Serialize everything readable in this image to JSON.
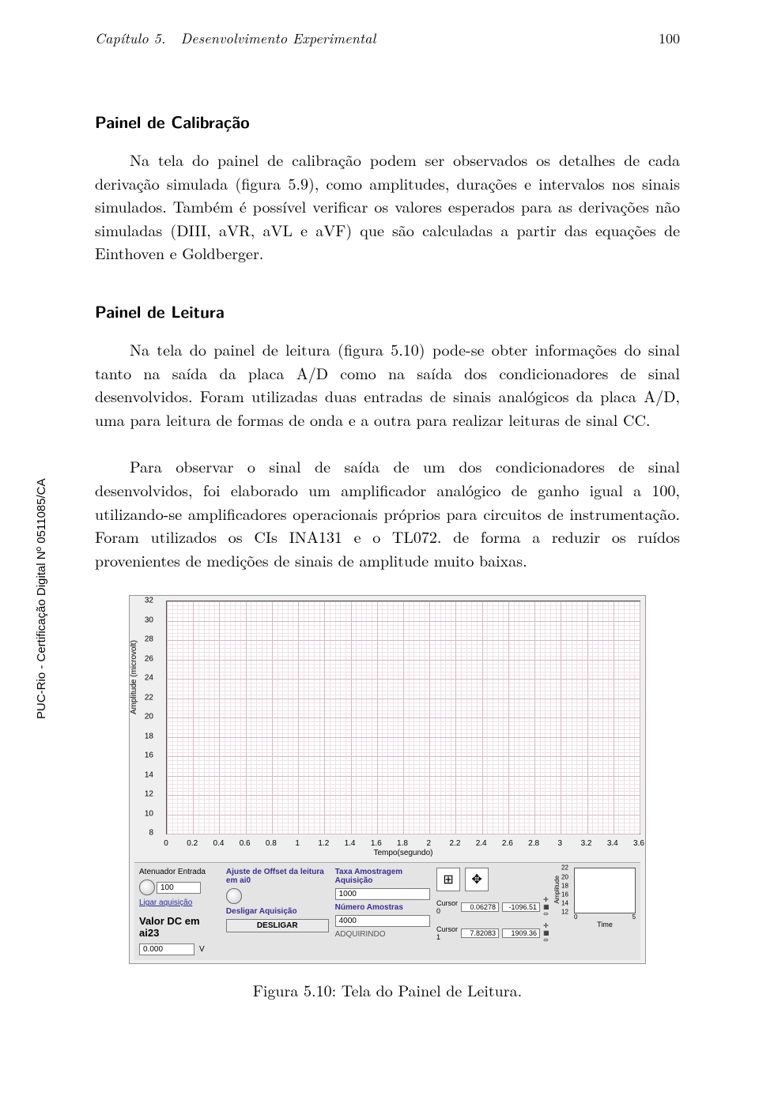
{
  "header": {
    "chapter": "Capítulo 5.",
    "title": "Desenvolvimento Experimental",
    "page": "100"
  },
  "section1": {
    "title": "Painel de Calibração",
    "p1": "Na tela do painel de calibração podem ser observados os detalhes de cada derivação simulada (figura 5.9), como amplitudes, durações e intervalos nos sinais simulados. Também é possível verificar os valores esperados para as derivações não simuladas (DIII, aVR, aVL e aVF) que são calculadas a partir das equações de Einthoven e Goldberger."
  },
  "section2": {
    "title": "Painel de Leitura",
    "p1": "Na tela do painel de leitura (figura 5.10) pode-se obter informações do sinal tanto na saída da placa A/D como na saída dos condicionadores de sinal desenvolvidos. Foram utilizadas duas entradas de sinais analógicos da placa A/D, uma para leitura de formas de onda e a outra para realizar leituras de sinal CC.",
    "p2": "Para observar o sinal de saída de um dos condicionadores de sinal desenvolvidos, foi elaborado um amplificador analógico de ganho igual a 100, utilizando-se amplificadores operacionais próprios para circuitos de instrumentação. Foram utilizados os CIs INA131 e o TL072. de forma a reduzir os ruídos provenientes de medições de sinais de amplitude muito baixas."
  },
  "sidecert": "PUC-Rio - Certificação Digital Nº 0511085/CA",
  "figure": {
    "ylabel": "Amplitude (microvolt)",
    "xlabel": "Tempo(segundo)",
    "yticks": [
      "32",
      "30",
      "28",
      "26",
      "24",
      "22",
      "20",
      "18",
      "16",
      "14",
      "12",
      "10",
      "8"
    ],
    "xticks": [
      "0",
      "0.2",
      "0.4",
      "0.6",
      "0.8",
      "1",
      "1.2",
      "1.4",
      "1.6",
      "1.8",
      "2",
      "2.2",
      "2.4",
      "2.6",
      "2.8",
      "3",
      "3.2",
      "3.4",
      "3.6"
    ],
    "style": {
      "bg": "#ffffff",
      "major_grid": "#d7b8c3",
      "minor_grid": "#f1e1e7",
      "axis": "#555555"
    }
  },
  "controls": {
    "atten_lbl": "Atenuador Entrada",
    "atten_val": "100",
    "ligar": "Ligar aquisição",
    "offset_lbl": "Ajuste de Offset da leitura em ai0",
    "desligar_lbl": "Desligar Aquisição",
    "desligar_btn": "DESLIGAR",
    "taxa_lbl": "Taxa Amostragem Aquisição",
    "taxa_val": "1000",
    "num_lbl": "Número Amostras",
    "num_val": "4000",
    "adq": "ADQUIRINDO",
    "cursor0_lbl": "Cursor 0",
    "cursor0_a": "0.06278",
    "cursor0_b": "-1096.51",
    "cursor1_lbl": "Cursor 1",
    "cursor1_a": "7.82083",
    "cursor1_b": "1909.36",
    "mini_ylabel": "Amplitude",
    "mini_yticks": [
      "22",
      "20",
      "18",
      "16",
      "14",
      "12"
    ],
    "mini_xlabel": "Time",
    "mini_xmax": "5",
    "dc_lbl": "Valor DC em ai23",
    "dc_val": "0.000",
    "dc_unit": "V"
  },
  "caption": "Figura 5.10: Tela do Painel de Leitura."
}
